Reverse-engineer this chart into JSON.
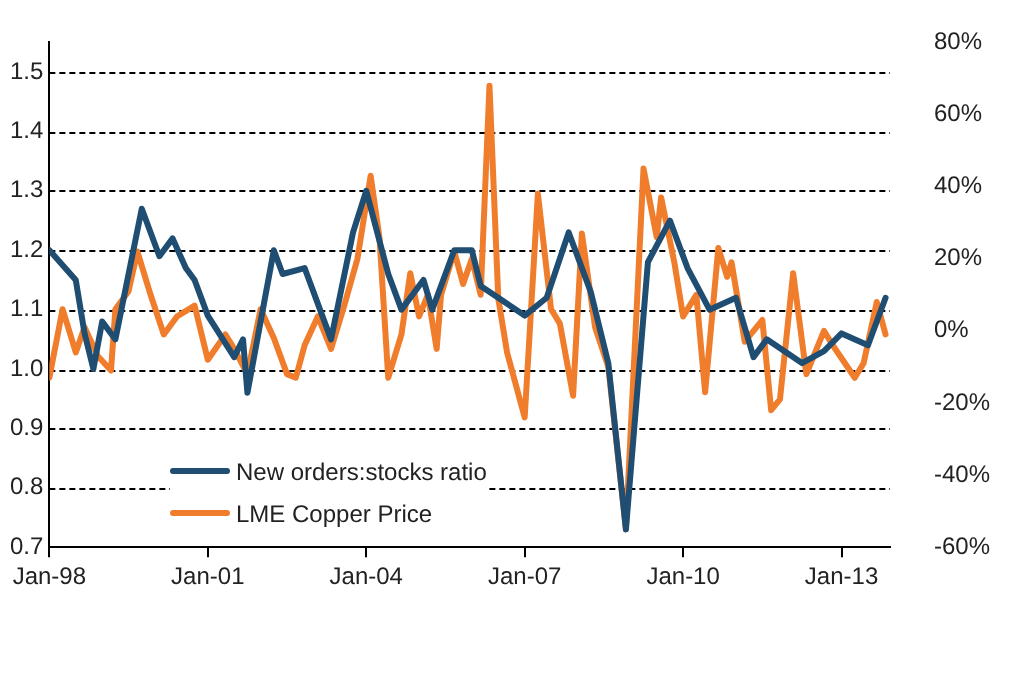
{
  "chart_data": {
    "type": "line",
    "xlim": [
      "1998-01",
      "2013-12"
    ],
    "xticks": [
      {
        "value": "1998-01",
        "label": "Jan-98"
      },
      {
        "value": "2001-01",
        "label": "Jan-01"
      },
      {
        "value": "2004-01",
        "label": "Jan-04"
      },
      {
        "value": "2007-01",
        "label": "Jan-07"
      },
      {
        "value": "2010-01",
        "label": "Jan-10"
      },
      {
        "value": "2013-01",
        "label": "Jan-13"
      }
    ],
    "ylim": [
      0.7,
      1.55
    ],
    "yticks": [
      {
        "value": 0.7,
        "label": "0.7"
      },
      {
        "value": 0.8,
        "label": "0.8"
      },
      {
        "value": 0.9,
        "label": "0.9"
      },
      {
        "value": 1.0,
        "label": "1.0"
      },
      {
        "value": 1.1,
        "label": "1.1"
      },
      {
        "value": 1.2,
        "label": "1.2"
      },
      {
        "value": 1.3,
        "label": "1.3"
      },
      {
        "value": 1.4,
        "label": "1.4"
      },
      {
        "value": 1.5,
        "label": "1.5"
      }
    ],
    "y2lim": [
      -60,
      80
    ],
    "y2ticks": [
      {
        "value": -60,
        "label": "-60%"
      },
      {
        "value": -40,
        "label": "-40%"
      },
      {
        "value": -20,
        "label": "-20%"
      },
      {
        "value": 0,
        "label": "0%"
      },
      {
        "value": 20,
        "label": "20%"
      },
      {
        "value": 40,
        "label": "40%"
      },
      {
        "value": 60,
        "label": "60%"
      },
      {
        "value": 80,
        "label": "80%"
      }
    ],
    "grid": "y",
    "legend": "bottom left",
    "marker": "none",
    "line_style": "solid",
    "series": [
      {
        "name": "New orders:stocks ratio",
        "color": "#1f4e72",
        "x": [
          "1998-01",
          "1998-07",
          "1998-09",
          "1998-11",
          "1999-01",
          "1999-04",
          "1999-10",
          "2000-02",
          "2000-05",
          "2000-08",
          "2000-10",
          "2001-01",
          "2001-07",
          "2001-09",
          "2001-10",
          "2002-04",
          "2002-06",
          "2002-11",
          "2003-05",
          "2003-10",
          "2004-01",
          "2004-06",
          "2004-09",
          "2005-02",
          "2005-04",
          "2005-09",
          "2006-01",
          "2006-03",
          "2006-07",
          "2007-01",
          "2007-06",
          "2007-11",
          "2008-04",
          "2008-08",
          "2008-12",
          "2009-05",
          "2009-10",
          "2010-02",
          "2010-07",
          "2011-01",
          "2011-05",
          "2011-08",
          "2012-04",
          "2012-09",
          "2013-01",
          "2013-07",
          "2013-11"
        ],
        "values": [
          1.2,
          1.15,
          1.06,
          1.0,
          1.08,
          1.05,
          1.27,
          1.19,
          1.22,
          1.17,
          1.15,
          1.09,
          1.02,
          1.05,
          0.96,
          1.2,
          1.16,
          1.17,
          1.05,
          1.23,
          1.3,
          1.16,
          1.1,
          1.15,
          1.1,
          1.2,
          1.2,
          1.14,
          1.12,
          1.09,
          1.12,
          1.23,
          1.13,
          1.01,
          0.73,
          1.18,
          1.25,
          1.17,
          1.1,
          1.12,
          1.02,
          1.05,
          1.01,
          1.03,
          1.06,
          1.04,
          1.12
        ]
      },
      {
        "name": "LME Copper Price",
        "color": "#f07d2c",
        "axis": "y2",
        "x": [
          "1998-01",
          "1998-04",
          "1998-07",
          "1998-09",
          "1998-12",
          "1999-03",
          "1999-04",
          "1999-07",
          "1999-09",
          "1999-12",
          "2000-03",
          "2000-06",
          "2000-10",
          "2001-01",
          "2001-05",
          "2001-07",
          "2001-10",
          "2002-01",
          "2002-04",
          "2002-07",
          "2002-09",
          "2002-11",
          "2003-02",
          "2003-05",
          "2003-08",
          "2003-11",
          "2004-02",
          "2004-04",
          "2004-06",
          "2004-09",
          "2004-11",
          "2005-01",
          "2005-03",
          "2005-05",
          "2005-06",
          "2005-09",
          "2005-11",
          "2006-01",
          "2006-03",
          "2006-05",
          "2006-07",
          "2006-09",
          "2007-01",
          "2007-04",
          "2007-07",
          "2007-09",
          "2007-12",
          "2008-02",
          "2008-05",
          "2008-08",
          "2008-12",
          "2009-04",
          "2009-07",
          "2009-08",
          "2009-11",
          "2010-01",
          "2010-04",
          "2010-06",
          "2010-09",
          "2010-11",
          "2010-12",
          "2011-03",
          "2011-07",
          "2011-09",
          "2011-11",
          "2012-02",
          "2012-05",
          "2012-09",
          "2012-11",
          "2013-04",
          "2013-06",
          "2013-09",
          "2013-11"
        ],
        "values": [
          -13,
          6,
          -6,
          1,
          -7,
          -11,
          6,
          11,
          22,
          10,
          -1,
          4,
          7,
          -8,
          -1,
          -5,
          -12,
          6,
          -2,
          -12,
          -13,
          -4,
          4,
          -5,
          7,
          20,
          43,
          26,
          -13,
          -1,
          16,
          4,
          10,
          -5,
          10,
          22,
          13,
          20,
          10,
          68,
          9,
          -6,
          -24,
          38,
          6,
          2,
          -18,
          27,
          1,
          -10,
          -55,
          45,
          26,
          37,
          19,
          4,
          10,
          -17,
          23,
          15,
          19,
          -3,
          3,
          -22,
          -19,
          16,
          -12,
          0,
          -4,
          -13,
          -9,
          8,
          -1
        ]
      }
    ]
  }
}
